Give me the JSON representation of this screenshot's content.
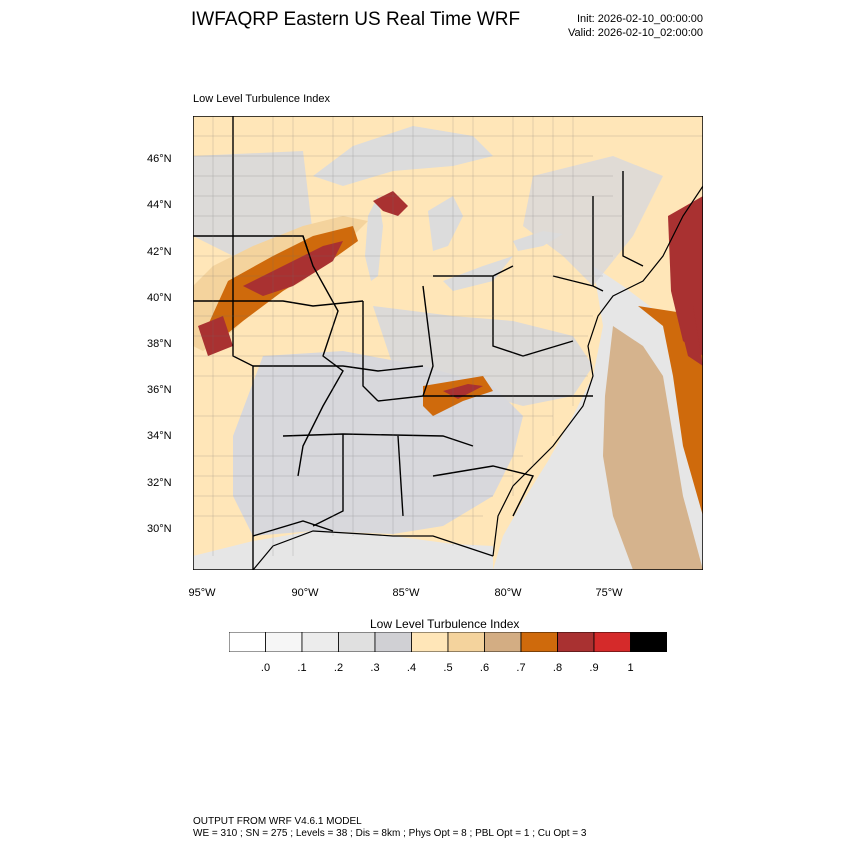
{
  "title": "IWFAQRP Eastern US Real Time WRF",
  "init": "Init: 2026-02-10_00:00:00",
  "valid": "Valid: 2026-02-10_02:00:00",
  "subtitle": "Low Level Turbulence Index",
  "lat_labels": [
    "46°N",
    "44°N",
    "42°N",
    "40°N",
    "38°N",
    "36°N",
    "34°N",
    "32°N",
    "30°N"
  ],
  "lon_labels": [
    "95°W",
    "90°W",
    "85°W",
    "80°W",
    "75°W"
  ],
  "colorbar": {
    "title": "Low Level Turbulence Index",
    "labels": [
      ".0",
      ".1",
      ".2",
      ".3",
      ".4",
      ".5",
      ".6",
      ".7",
      ".8",
      ".9",
      "1"
    ],
    "colors": [
      "#ffffff",
      "#f6f6f6",
      "#ececec",
      "#e0e0e0",
      "#d0d0d4",
      "#ffe6b8",
      "#f4d39d",
      "#d3ad83",
      "#cf6a0c",
      "#a93131",
      "#d52a2a",
      "#000000"
    ]
  },
  "map_colors": {
    "ocean_light": "#e6e6e6",
    "land_grey": "#d8d8dc",
    "light_orange": "#ffe6b8",
    "tan": "#f4d39d",
    "brown": "#d3ad83",
    "orange": "#cf6a0c",
    "dark_red": "#a93131",
    "lake": "#dcdcdc"
  },
  "footer": {
    "line1": "OUTPUT FROM WRF V4.6.1 MODEL",
    "line2": "WE = 310 ; SN = 275 ; Levels = 38 ; Dis = 8km ; Phys Opt = 8 ; PBL Opt = 1 ; Cu Opt = 3"
  }
}
